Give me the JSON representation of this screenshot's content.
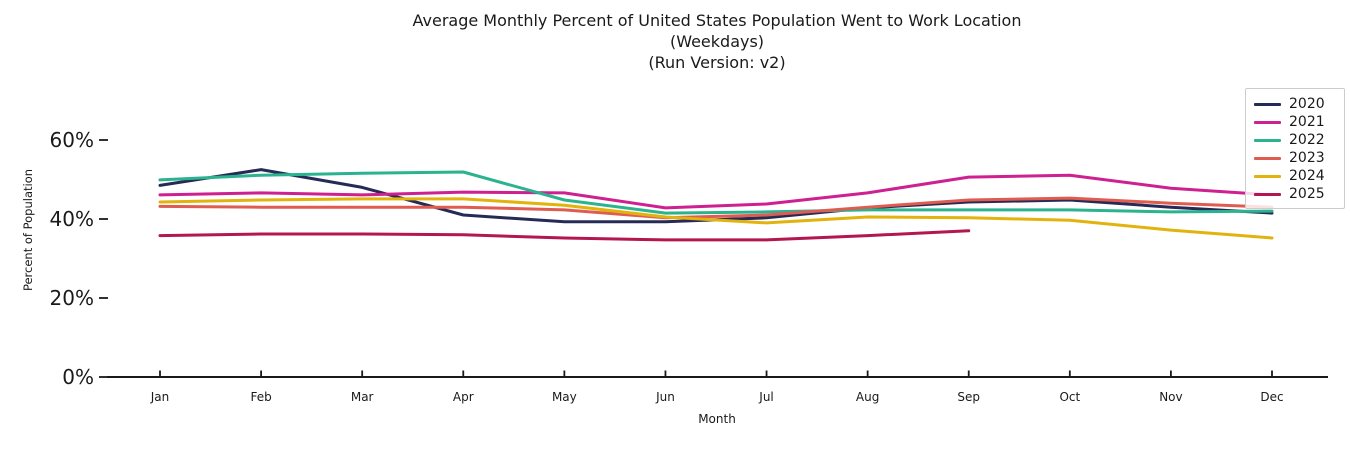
{
  "title": {
    "line1": "Average Monthly Percent of United States Population Went to Work Location",
    "line2": "(Weekdays)",
    "line3": "(Run Version: v2)"
  },
  "axes": {
    "xlabel": "Month",
    "ylabel": "Percent of Population",
    "x_tick_labels": [
      "Jan",
      "Feb",
      "Mar",
      "Apr",
      "May",
      "Jun",
      "Jul",
      "Aug",
      "Sep",
      "Oct",
      "Nov",
      "Dec"
    ],
    "y_tick_labels": [
      "0%",
      "20%",
      "40%",
      "60%"
    ],
    "y_tick_values": [
      0,
      20,
      40,
      60
    ]
  },
  "chart_data": {
    "type": "line",
    "title": "Average Monthly Percent of United States Population Went to Work Location (Weekdays) (Run Version: v2)",
    "xlabel": "Month",
    "ylabel": "Percent of Population",
    "categories": [
      "Jan",
      "Feb",
      "Mar",
      "Apr",
      "May",
      "Jun",
      "Jul",
      "Aug",
      "Sep",
      "Oct",
      "Nov",
      "Dec"
    ],
    "ylim": [
      0,
      74
    ],
    "grid": false,
    "legend_position": "upper right",
    "series": [
      {
        "name": "2020",
        "color": "#262a56",
        "values": [
          48.5,
          52.5,
          48.0,
          41.0,
          39.3,
          39.3,
          40.3,
          42.8,
          44.3,
          44.8,
          43.0,
          41.5
        ]
      },
      {
        "name": "2021",
        "color": "#ce2090",
        "values": [
          46.1,
          46.6,
          46.1,
          46.8,
          46.6,
          42.8,
          43.8,
          46.6,
          50.6,
          51.1,
          47.8,
          46.1
        ]
      },
      {
        "name": "2022",
        "color": "#2bb38f",
        "values": [
          49.9,
          51.1,
          51.6,
          51.9,
          44.8,
          41.5,
          41.8,
          42.3,
          42.3,
          42.3,
          41.8,
          42.0
        ]
      },
      {
        "name": "2023",
        "color": "#e05c51",
        "values": [
          43.2,
          43.0,
          43.0,
          43.0,
          42.3,
          40.3,
          41.0,
          43.0,
          44.8,
          45.3,
          44.0,
          43.0
        ]
      },
      {
        "name": "2024",
        "color": "#e2b30d",
        "values": [
          44.3,
          44.8,
          45.1,
          45.1,
          43.5,
          40.5,
          39.0,
          40.5,
          40.3,
          39.7,
          37.2,
          35.2
        ]
      },
      {
        "name": "2025",
        "color": "#b4164f",
        "values": [
          35.8,
          36.2,
          36.2,
          36.0,
          35.2,
          34.7,
          34.7,
          35.8,
          37.0,
          null,
          null,
          null
        ]
      }
    ]
  },
  "style": {
    "axis_color": "#1a1a1a",
    "line_width": 3
  }
}
